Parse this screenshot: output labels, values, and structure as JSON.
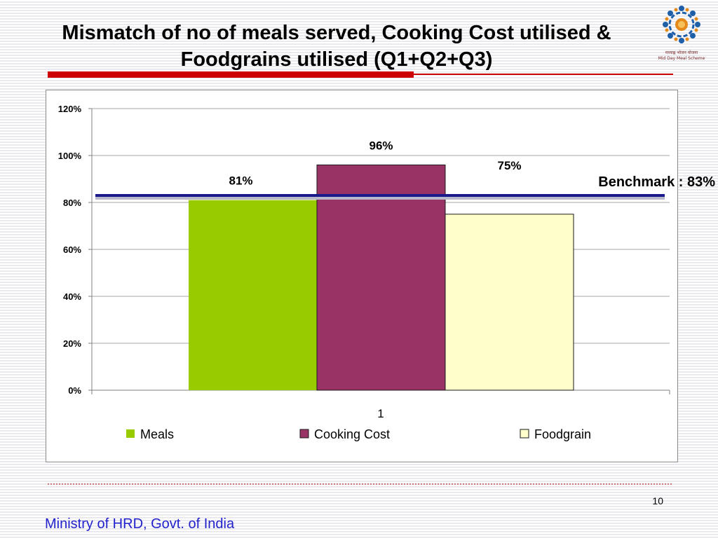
{
  "slide": {
    "title_line1": "Mismatch of no of meals served, Cooking Cost utilised &",
    "title_line2": "Foodgrains utilised (Q1+Q2+Q3)",
    "logo_text_hindi": "मध्याह्न भोजन योजना",
    "logo_text": "Mid Day Meal Scheme",
    "page_number": "10",
    "footer": "Ministry of HRD, Govt. of India"
  },
  "colors": {
    "accent_red": "#cc0000",
    "footer_blue": "#2222cc",
    "benchmark_line": "#1a1a8c"
  },
  "chart_data": {
    "type": "bar",
    "categories": [
      "1"
    ],
    "series": [
      {
        "name": "Meals",
        "values": [
          81
        ],
        "label": "81%",
        "color": "#99cc00"
      },
      {
        "name": "Cooking Cost",
        "values": [
          96
        ],
        "label": "96%",
        "color": "#993366"
      },
      {
        "name": "Foodgrain",
        "values": [
          75
        ],
        "label": "75%",
        "color": "#ffffcc"
      }
    ],
    "y_unit": "%",
    "ylim": [
      0,
      120
    ],
    "y_ticks": [
      "0%",
      "20%",
      "40%",
      "60%",
      "80%",
      "100%",
      "120%"
    ],
    "y_tick_values": [
      0,
      20,
      40,
      60,
      80,
      100,
      120
    ],
    "grid": true,
    "legend_position": "bottom",
    "benchmark": {
      "value": 83,
      "label": "Benchmark : 83%"
    }
  }
}
